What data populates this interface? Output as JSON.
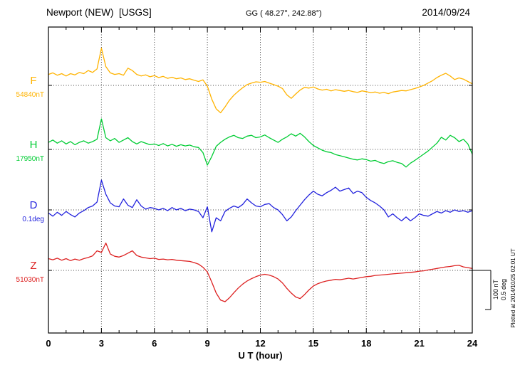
{
  "header": {
    "station": "Newport (NEW)  [USGS]",
    "coords": "GG ( 48.27°, 242.88°)",
    "date": "2014/09/24"
  },
  "footer_note": "Plotted at 2014/10/25 02:01 UT",
  "chart_data": {
    "type": "line",
    "title": "Newport (NEW) [USGS] magnetogram, 2014/09/24",
    "x_label": "U T (hour)",
    "x_min": 0,
    "x_max": 24,
    "x_ticks": [
      0,
      3,
      6,
      9,
      12,
      15,
      18,
      21,
      24
    ],
    "minor_tick_step": 1,
    "x_start": 0,
    "x_step": 0.25,
    "scale_bar": {
      "nT_label": "100 nT",
      "deg_label": "0.5 deg",
      "nT_per_division": 100,
      "deg_per_division": 0.5
    },
    "channels": [
      {
        "id": "F",
        "label": "F",
        "baseline_label": "54840nT",
        "baseline_value": 54840,
        "unit": "nT",
        "scale_per_division": 100,
        "color": "#FFB300",
        "offsets_from_baseline": [
          28,
          32,
          26,
          30,
          24,
          30,
          27,
          33,
          30,
          38,
          33,
          42,
          95,
          48,
          32,
          28,
          30,
          26,
          44,
          38,
          28,
          24,
          27,
          22,
          25,
          20,
          23,
          18,
          21,
          17,
          19,
          15,
          17,
          13,
          10,
          14,
          -2,
          -35,
          -60,
          -70,
          -55,
          -38,
          -25,
          -15,
          -6,
          2,
          6,
          9,
          8,
          10,
          6,
          2,
          -2,
          -8,
          -24,
          -33,
          -22,
          -12,
          -5,
          -7,
          -4,
          -9,
          -12,
          -10,
          -14,
          -11,
          -13,
          -15,
          -13,
          -16,
          -18,
          -14,
          -16,
          -19,
          -17,
          -20,
          -18,
          -21,
          -17,
          -15,
          -13,
          -14,
          -11,
          -8,
          -4,
          0,
          6,
          12,
          20,
          26,
          31,
          24,
          15,
          19,
          16,
          10,
          4
        ]
      },
      {
        "id": "H",
        "label": "H",
        "baseline_label": "17950nT",
        "baseline_value": 17950,
        "unit": "nT",
        "scale_per_division": 100,
        "color": "#00CC33",
        "offsets_from_baseline": [
          18,
          24,
          16,
          22,
          14,
          20,
          12,
          18,
          22,
          16,
          20,
          26,
          78,
          30,
          22,
          28,
          18,
          24,
          30,
          20,
          14,
          20,
          16,
          12,
          14,
          10,
          15,
          9,
          13,
          8,
          12,
          9,
          11,
          7,
          5,
          -8,
          -40,
          -18,
          8,
          18,
          26,
          32,
          36,
          30,
          28,
          34,
          36,
          30,
          32,
          37,
          30,
          24,
          18,
          26,
          32,
          40,
          34,
          41,
          32,
          20,
          10,
          4,
          -2,
          -6,
          -8,
          -13,
          -16,
          -19,
          -22,
          -25,
          -27,
          -24,
          -26,
          -30,
          -28,
          -33,
          -36,
          -31,
          -29,
          -33,
          -36,
          -45,
          -35,
          -28,
          -20,
          -12,
          -4,
          6,
          16,
          31,
          24,
          36,
          30,
          20,
          26,
          14,
          -12
        ]
      },
      {
        "id": "D",
        "label": "D",
        "baseline_label": "0.1deg",
        "baseline_value": 0.1,
        "unit": "deg",
        "scale_per_division": 0.5,
        "color": "#2222DD",
        "offsets_from_baseline": [
          -0.04,
          -0.08,
          -0.03,
          -0.07,
          -0.02,
          -0.06,
          -0.09,
          -0.04,
          -0.01,
          0.03,
          0.05,
          0.1,
          0.38,
          0.2,
          0.09,
          0.05,
          0.04,
          0.14,
          0.06,
          0.03,
          0.13,
          0.05,
          0.01,
          0.03,
          0.02,
          0.0,
          0.02,
          -0.01,
          0.03,
          0.0,
          0.02,
          -0.01,
          0.01,
          0.0,
          -0.02,
          -0.1,
          0.04,
          -0.28,
          -0.1,
          -0.14,
          -0.02,
          0.02,
          0.05,
          0.03,
          0.07,
          0.14,
          0.09,
          0.05,
          0.04,
          0.07,
          0.08,
          0.03,
          0.0,
          -0.06,
          -0.14,
          -0.09,
          -0.01,
          0.06,
          0.13,
          0.19,
          0.24,
          0.2,
          0.18,
          0.22,
          0.25,
          0.29,
          0.24,
          0.26,
          0.28,
          0.21,
          0.24,
          0.22,
          0.16,
          0.12,
          0.09,
          0.05,
          0.0,
          -0.09,
          -0.05,
          -0.1,
          -0.14,
          -0.09,
          -0.14,
          -0.1,
          -0.05,
          -0.07,
          -0.08,
          -0.05,
          -0.02,
          -0.04,
          -0.01,
          -0.03,
          0.0,
          -0.02,
          -0.01,
          -0.03,
          -0.01
        ]
      },
      {
        "id": "Z",
        "label": "Z",
        "baseline_label": "51030nT",
        "baseline_value": 51030,
        "unit": "nT",
        "scale_per_division": 100,
        "color": "#DD2222",
        "offsets_from_baseline": [
          30,
          27,
          31,
          26,
          30,
          25,
          29,
          26,
          30,
          33,
          37,
          50,
          46,
          70,
          42,
          36,
          34,
          38,
          44,
          50,
          38,
          34,
          32,
          30,
          31,
          28,
          29,
          27,
          28,
          26,
          25,
          24,
          23,
          20,
          16,
          8,
          -4,
          -30,
          -58,
          -76,
          -80,
          -70,
          -57,
          -45,
          -35,
          -27,
          -21,
          -16,
          -12,
          -10,
          -12,
          -16,
          -22,
          -32,
          -46,
          -58,
          -68,
          -72,
          -62,
          -50,
          -40,
          -34,
          -30,
          -27,
          -25,
          -23,
          -24,
          -22,
          -20,
          -22,
          -20,
          -18,
          -16,
          -15,
          -13,
          -12,
          -11,
          -10,
          -9,
          -8,
          -7,
          -6,
          -5,
          -4,
          -2,
          -1,
          1,
          3,
          5,
          7,
          9,
          10,
          12,
          13,
          9,
          7,
          5
        ]
      }
    ]
  }
}
